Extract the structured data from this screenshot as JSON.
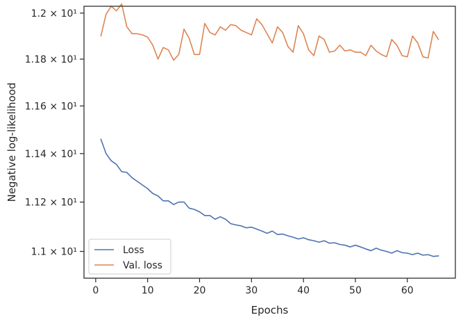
{
  "chart_data": {
    "type": "line",
    "title": "",
    "xlabel": "Epochs",
    "ylabel": "Negative log-likelihood",
    "xlim": [
      -2.25,
      69.25
    ],
    "ylim": [
      10.893,
      12.03
    ],
    "yscale": "log",
    "xticks": [
      0,
      10,
      20,
      30,
      40,
      50,
      60
    ],
    "yticks": [
      {
        "value": 11.0,
        "label": "1.1 × 10¹"
      },
      {
        "value": 11.2,
        "label": "1.12 × 10¹"
      },
      {
        "value": 11.4,
        "label": "1.14 × 10¹"
      },
      {
        "value": 11.6,
        "label": "1.16 × 10¹"
      },
      {
        "value": 11.8,
        "label": "1.18 × 10¹"
      },
      {
        "value": 12.0,
        "label": "1.2 × 10¹"
      }
    ],
    "grid": false,
    "legend_position": "lower-left",
    "series": [
      {
        "name": "Loss",
        "color": "#4c72b0",
        "x": [
          1,
          2,
          3,
          4,
          5,
          6,
          7,
          8,
          9,
          10,
          11,
          12,
          13,
          14,
          15,
          16,
          17,
          18,
          19,
          20,
          21,
          22,
          23,
          24,
          25,
          26,
          27,
          28,
          29,
          30,
          31,
          32,
          33,
          34,
          35,
          36,
          37,
          38,
          39,
          40,
          41,
          42,
          43,
          44,
          45,
          46,
          47,
          48,
          49,
          50,
          51,
          52,
          53,
          54,
          55,
          56,
          57,
          58,
          59,
          60,
          61,
          62,
          63,
          64,
          65,
          66
        ],
        "y": [
          11.46,
          11.4,
          11.37,
          11.355,
          11.325,
          11.322,
          11.3,
          11.285,
          11.27,
          11.255,
          11.235,
          11.225,
          11.205,
          11.205,
          11.19,
          11.2,
          11.2,
          11.175,
          11.17,
          11.16,
          11.145,
          11.145,
          11.13,
          11.14,
          11.13,
          11.112,
          11.107,
          11.103,
          11.095,
          11.098,
          11.09,
          11.082,
          11.073,
          11.082,
          11.068,
          11.07,
          11.063,
          11.057,
          11.05,
          11.055,
          11.047,
          11.043,
          11.037,
          11.043,
          11.033,
          11.035,
          11.028,
          11.025,
          11.018,
          11.025,
          11.018,
          11.01,
          11.003,
          11.013,
          11.005,
          11.0,
          10.993,
          11.003,
          10.995,
          10.993,
          10.987,
          10.993,
          10.985,
          10.987,
          10.98,
          10.982
        ]
      },
      {
        "name": "Val. loss",
        "color": "#dd8452",
        "x": [
          1,
          2,
          3,
          4,
          5,
          6,
          7,
          8,
          9,
          10,
          11,
          12,
          13,
          14,
          15,
          16,
          17,
          18,
          19,
          20,
          21,
          22,
          23,
          24,
          25,
          26,
          27,
          28,
          29,
          30,
          31,
          32,
          33,
          34,
          35,
          36,
          37,
          38,
          39,
          40,
          41,
          42,
          43,
          44,
          45,
          46,
          47,
          48,
          49,
          50,
          51,
          52,
          53,
          54,
          55,
          56,
          57,
          58,
          59,
          60,
          61,
          62,
          63,
          64,
          65,
          66
        ],
        "y": [
          11.9,
          11.995,
          12.03,
          12.01,
          12.04,
          11.94,
          11.91,
          11.91,
          11.905,
          11.895,
          11.86,
          11.8,
          11.85,
          11.84,
          11.795,
          11.82,
          11.93,
          11.89,
          11.82,
          11.82,
          11.955,
          11.915,
          11.905,
          11.94,
          11.925,
          11.95,
          11.945,
          11.925,
          11.915,
          11.905,
          11.975,
          11.95,
          11.91,
          11.87,
          11.94,
          11.915,
          11.855,
          11.83,
          11.945,
          11.91,
          11.84,
          11.815,
          11.9,
          11.885,
          11.83,
          11.835,
          11.86,
          11.835,
          11.84,
          11.83,
          11.83,
          11.815,
          11.86,
          11.835,
          11.82,
          11.81,
          11.885,
          11.86,
          11.815,
          11.81,
          11.9,
          11.87,
          11.81,
          11.805,
          11.92,
          11.885
        ]
      }
    ]
  }
}
